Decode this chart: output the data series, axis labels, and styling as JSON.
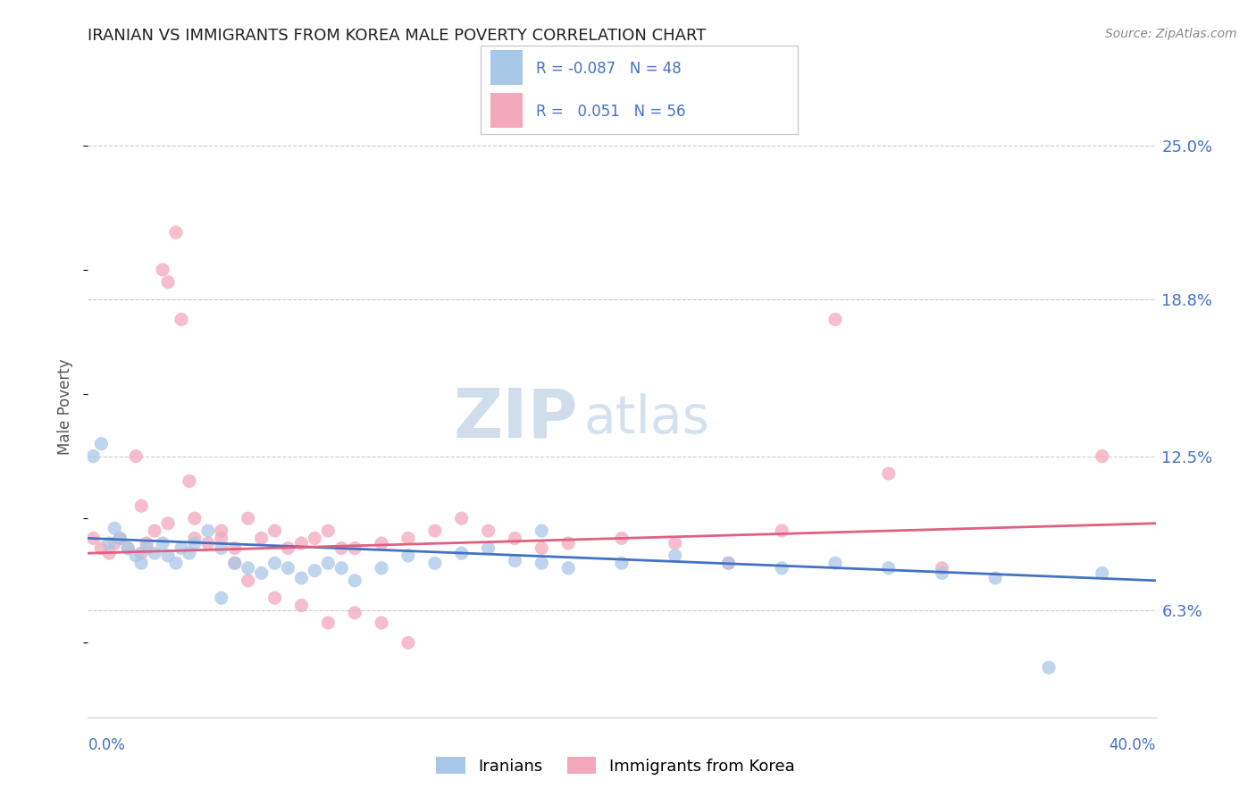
{
  "title": "IRANIAN VS IMMIGRANTS FROM KOREA MALE POVERTY CORRELATION CHART",
  "source": "Source: ZipAtlas.com",
  "ylabel": "Male Poverty",
  "yticks": [
    0.063,
    0.125,
    0.188,
    0.25
  ],
  "ytick_labels": [
    "6.3%",
    "12.5%",
    "18.8%",
    "25.0%"
  ],
  "xmin": 0.0,
  "xmax": 0.4,
  "ymin": 0.02,
  "ymax": 0.27,
  "blue_color": "#A8C8E8",
  "pink_color": "#F4A8BC",
  "blue_line_color": "#4472C4",
  "pink_line_color": "#E06080",
  "r_blue": -0.087,
  "n_blue": 48,
  "r_pink": 0.051,
  "n_pink": 56,
  "legend_label_blue": "Iranians",
  "legend_label_pink": "Immigrants from Korea",
  "blue_scatter_x": [
    0.002,
    0.005,
    0.008,
    0.01,
    0.012,
    0.015,
    0.018,
    0.02,
    0.022,
    0.025,
    0.028,
    0.03,
    0.033,
    0.035,
    0.038,
    0.04,
    0.045,
    0.05,
    0.055,
    0.06,
    0.065,
    0.07,
    0.075,
    0.08,
    0.085,
    0.09,
    0.095,
    0.1,
    0.11,
    0.12,
    0.13,
    0.14,
    0.15,
    0.16,
    0.17,
    0.18,
    0.2,
    0.22,
    0.24,
    0.26,
    0.28,
    0.3,
    0.32,
    0.34,
    0.36,
    0.38,
    0.05,
    0.17
  ],
  "blue_scatter_y": [
    0.125,
    0.13,
    0.09,
    0.096,
    0.092,
    0.088,
    0.085,
    0.082,
    0.088,
    0.086,
    0.09,
    0.085,
    0.082,
    0.088,
    0.086,
    0.09,
    0.095,
    0.088,
    0.082,
    0.08,
    0.078,
    0.082,
    0.08,
    0.076,
    0.079,
    0.082,
    0.08,
    0.075,
    0.08,
    0.085,
    0.082,
    0.086,
    0.088,
    0.083,
    0.082,
    0.08,
    0.082,
    0.085,
    0.082,
    0.08,
    0.082,
    0.08,
    0.078,
    0.076,
    0.04,
    0.078,
    0.068,
    0.095
  ],
  "pink_scatter_x": [
    0.002,
    0.005,
    0.008,
    0.01,
    0.012,
    0.015,
    0.018,
    0.02,
    0.022,
    0.025,
    0.028,
    0.03,
    0.033,
    0.035,
    0.038,
    0.04,
    0.045,
    0.05,
    0.055,
    0.06,
    0.065,
    0.07,
    0.075,
    0.08,
    0.085,
    0.09,
    0.095,
    0.1,
    0.11,
    0.12,
    0.13,
    0.14,
    0.15,
    0.16,
    0.17,
    0.18,
    0.2,
    0.22,
    0.24,
    0.26,
    0.28,
    0.3,
    0.32,
    0.02,
    0.03,
    0.04,
    0.05,
    0.055,
    0.06,
    0.07,
    0.08,
    0.09,
    0.1,
    0.11,
    0.12,
    0.38
  ],
  "pink_scatter_y": [
    0.092,
    0.088,
    0.086,
    0.09,
    0.092,
    0.088,
    0.125,
    0.086,
    0.09,
    0.095,
    0.2,
    0.195,
    0.215,
    0.18,
    0.115,
    0.092,
    0.09,
    0.095,
    0.088,
    0.1,
    0.092,
    0.095,
    0.088,
    0.09,
    0.092,
    0.095,
    0.088,
    0.088,
    0.09,
    0.092,
    0.095,
    0.1,
    0.095,
    0.092,
    0.088,
    0.09,
    0.092,
    0.09,
    0.082,
    0.095,
    0.18,
    0.118,
    0.08,
    0.105,
    0.098,
    0.1,
    0.092,
    0.082,
    0.075,
    0.068,
    0.065,
    0.058,
    0.062,
    0.058,
    0.05,
    0.125
  ],
  "blue_trend_x": [
    0.0,
    0.4
  ],
  "blue_trend_y": [
    0.092,
    0.075
  ],
  "pink_trend_x": [
    0.0,
    0.4
  ],
  "pink_trend_y": [
    0.086,
    0.098
  ]
}
